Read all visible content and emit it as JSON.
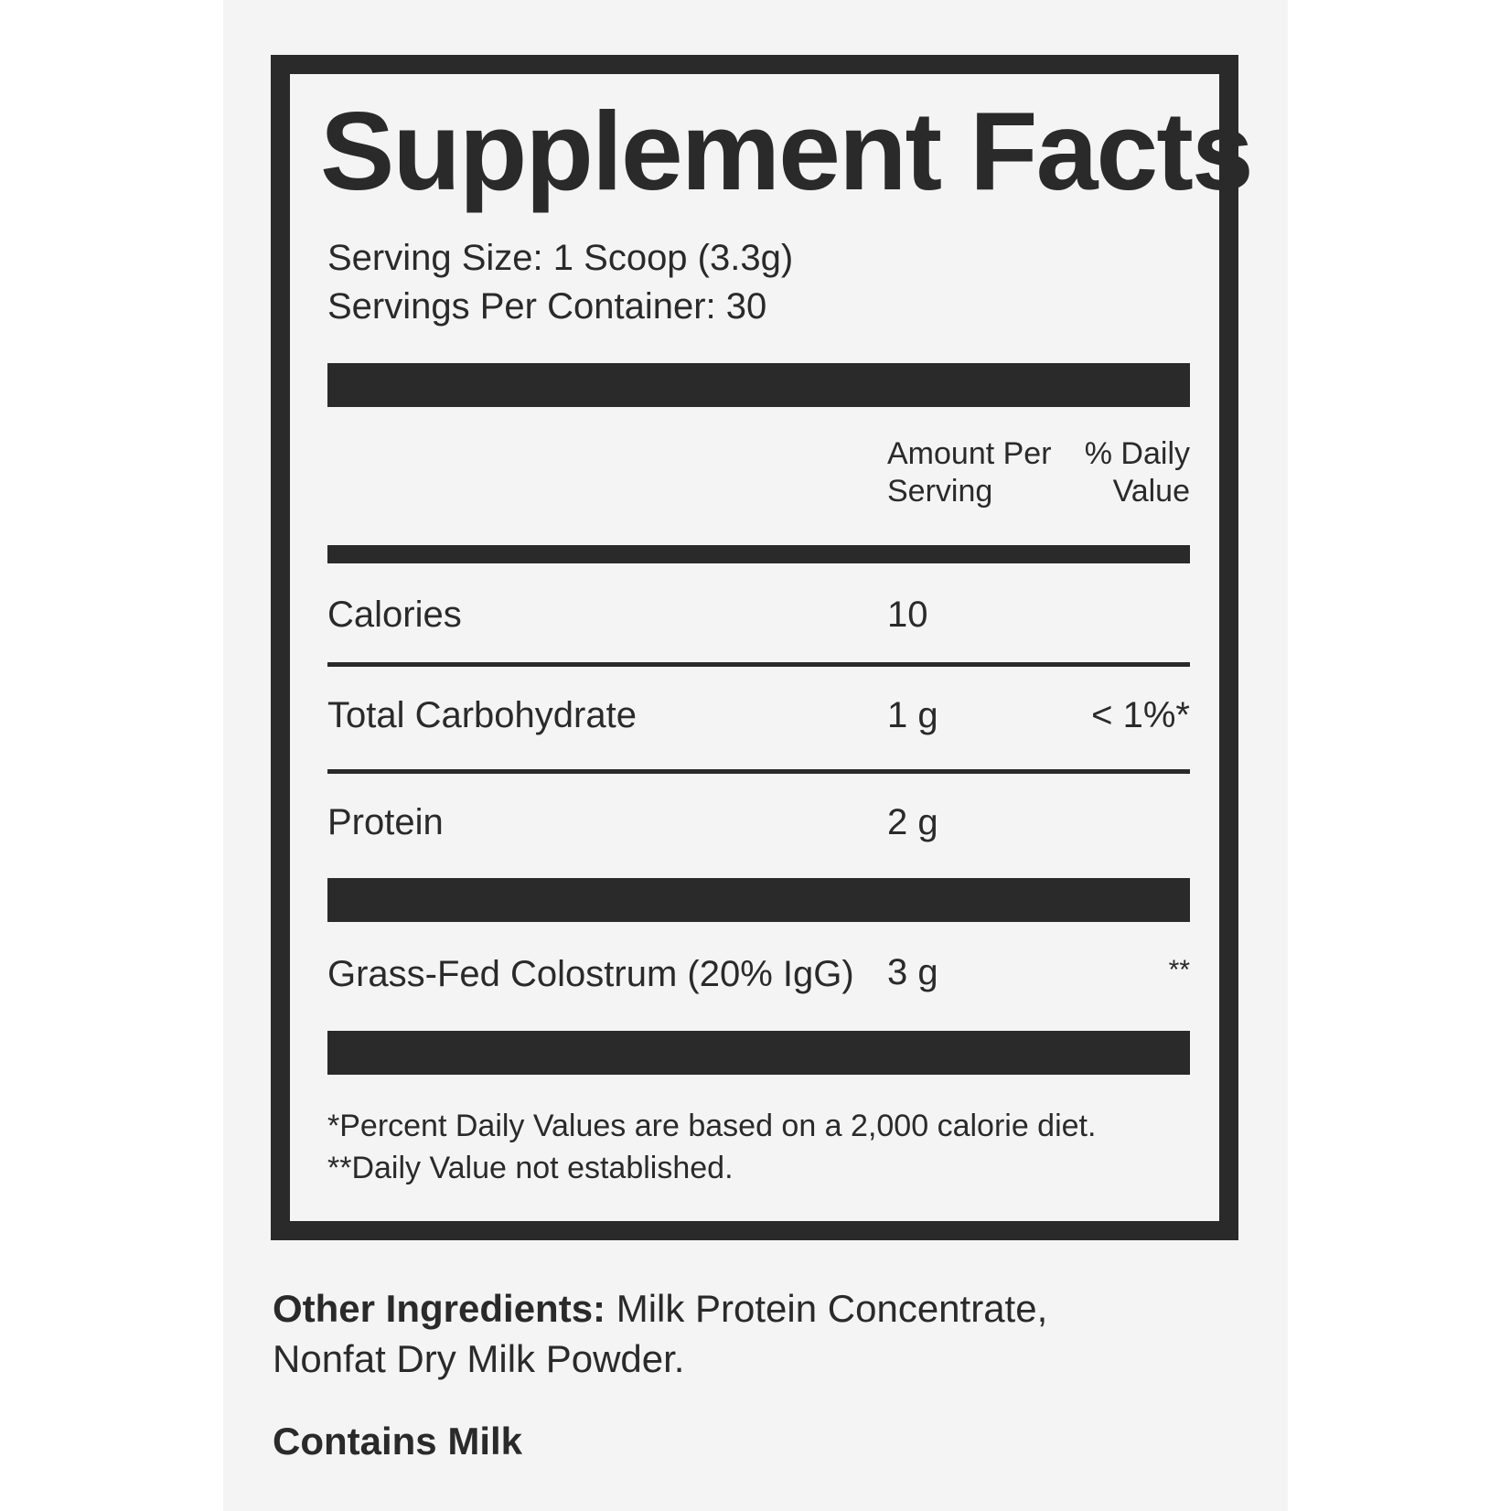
{
  "title": "Supplement Facts",
  "serving_size": "Serving Size: 1 Scoop (3.3g)",
  "servings_per_container": "Servings Per Container: 30",
  "header": {
    "amount_line1": "Amount Per",
    "amount_line2": "Serving",
    "dv_line1": "% Daily",
    "dv_line2": "Value"
  },
  "rows": [
    {
      "name": "Calories",
      "amount": "10",
      "dv": ""
    },
    {
      "name": "Total Carbohydrate",
      "amount": "1 g",
      "dv": "< 1%*"
    },
    {
      "name": "Protein",
      "amount": "2 g",
      "dv": ""
    },
    {
      "name": "Grass-Fed Colostrum (20% IgG)",
      "amount": "3 g",
      "dv": "**"
    }
  ],
  "footnotes": [
    "*Percent Daily Values are based on a 2,000 calorie diet.",
    "**Daily Value not established."
  ],
  "other_ingredients": {
    "label": "Other Ingredients:",
    "line1": " Milk Protein Concentrate,",
    "line2": "Nonfat Dry Milk Powder."
  },
  "allergen": "Contains Milk",
  "colors": {
    "ink": "#2b2a2a",
    "panel": "#f4f4f4"
  }
}
